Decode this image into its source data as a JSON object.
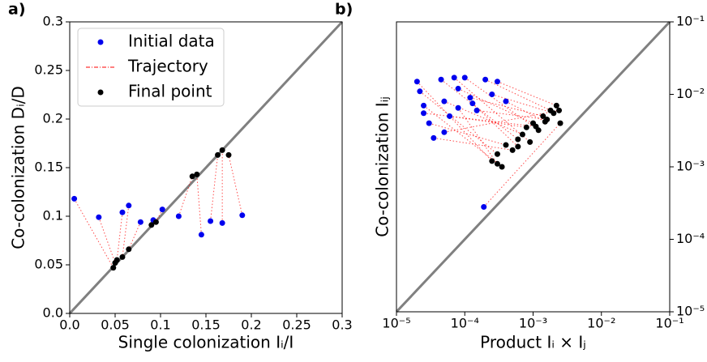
{
  "chart_data": [
    {
      "type": "scatter",
      "panel_label": "a)",
      "xlabel": "Single colonization Iᵢ/I",
      "ylabel": "Co-colonization Dᵢ/D",
      "xlim": [
        0,
        0.3
      ],
      "ylim": [
        0,
        0.3
      ],
      "log": false,
      "legend": "upper left",
      "ytick_side": "left",
      "xticks": [
        {
          "value": 0,
          "label": "0.0"
        },
        0.05,
        {
          "value": 0.1,
          "label": "0.1"
        },
        0.15,
        {
          "value": 0.2,
          "label": "0.2"
        },
        0.25,
        {
          "value": 0.3,
          "label": "0.3"
        }
      ],
      "yticks": [
        {
          "value": 0,
          "label": "0.0"
        },
        0.05,
        {
          "value": 0.1,
          "label": "0.1"
        },
        0.15,
        {
          "value": 0.2,
          "label": "0.2"
        },
        0.25,
        {
          "value": 0.3,
          "label": "0.3"
        }
      ],
      "trajectory": {
        "name": "Trajectory",
        "color": "#ff0000"
      },
      "series": [
        {
          "name": "Initial data",
          "color": "#0000ee",
          "x": [
            0.005,
            0.032,
            0.058,
            0.065,
            0.078,
            0.092,
            0.102,
            0.12,
            0.145,
            0.155,
            0.168,
            0.19
          ],
          "values": [
            0.118,
            0.099,
            0.104,
            0.111,
            0.094,
            0.096,
            0.107,
            0.1,
            0.081,
            0.095,
            0.093,
            0.101
          ]
        },
        {
          "name": "Final point",
          "color": "#000000",
          "x": [
            0.048,
            0.05,
            0.052,
            0.058,
            0.065,
            0.09,
            0.095,
            0.135,
            0.14,
            0.163,
            0.168,
            0.175
          ],
          "values": [
            0.047,
            0.052,
            0.055,
            0.058,
            0.066,
            0.091,
            0.094,
            0.141,
            0.143,
            0.163,
            0.168,
            0.163
          ]
        }
      ]
    },
    {
      "type": "scatter",
      "panel_label": "b)",
      "xlabel": "Product Iᵢ × Iⱼ",
      "ylabel": "Co-colonization Iᵢⱼ",
      "xlim": [
        1e-05,
        0.1
      ],
      "ylim": [
        1e-05,
        0.1
      ],
      "log": true,
      "ytick_side": "right",
      "xticks": [
        {
          "value": 1e-05,
          "label": "10⁻⁵"
        },
        {
          "value": 0.0001,
          "label": "10⁻⁴"
        },
        {
          "value": 0.001,
          "label": "10⁻³"
        },
        {
          "value": 0.01,
          "label": "10⁻²"
        },
        {
          "value": 0.1,
          "label": "10⁻¹"
        }
      ],
      "yticks": [
        {
          "value": 1e-05,
          "label": "10⁻⁵"
        },
        {
          "value": 0.0001,
          "label": "10⁻⁴"
        },
        {
          "value": 0.001,
          "label": "10⁻³"
        },
        {
          "value": 0.01,
          "label": "10⁻²"
        },
        {
          "value": 0.1,
          "label": "10⁻¹"
        }
      ],
      "trajectory": {
        "color": "#ff0000"
      },
      "series": [
        {
          "color": "#0000ee",
          "x": [
            2e-05,
            2.2e-05,
            2.5e-05,
            3e-05,
            3.5e-05,
            4.5e-05,
            5e-05,
            6e-05,
            7e-05,
            8e-05,
            0.0001,
            0.00012,
            0.00015,
            0.0002,
            0.00025,
            0.0003,
            5e-05,
            8e-05,
            0.00013,
            2.5e-05,
            0.0004,
            0.00019
          ],
          "values": [
            0.015,
            0.011,
            0.007,
            0.004,
            0.0025,
            0.016,
            0.008,
            0.005,
            0.017,
            0.012,
            0.017,
            0.009,
            0.006,
            0.016,
            0.01,
            0.015,
            0.003,
            0.0065,
            0.0075,
            0.0055,
            0.008,
            0.00028
          ]
        },
        {
          "color": "#000000",
          "x": [
            0.00025,
            0.0003,
            0.00035,
            0.0004,
            0.0005,
            0.0006,
            0.0007,
            0.0008,
            0.0009,
            0.001,
            0.0012,
            0.0014,
            0.0016,
            0.0018,
            0.002,
            0.0022,
            0.0024,
            0.0003,
            0.0006,
            0.0011,
            0.0015,
            0.0025
          ],
          "values": [
            0.0012,
            0.0015,
            0.001,
            0.002,
            0.0017,
            0.0024,
            0.0028,
            0.0035,
            0.0022,
            0.004,
            0.0032,
            0.005,
            0.0045,
            0.006,
            0.0055,
            0.007,
            0.006,
            0.0011,
            0.0019,
            0.0036,
            0.0042,
            0.004
          ]
        }
      ]
    }
  ]
}
